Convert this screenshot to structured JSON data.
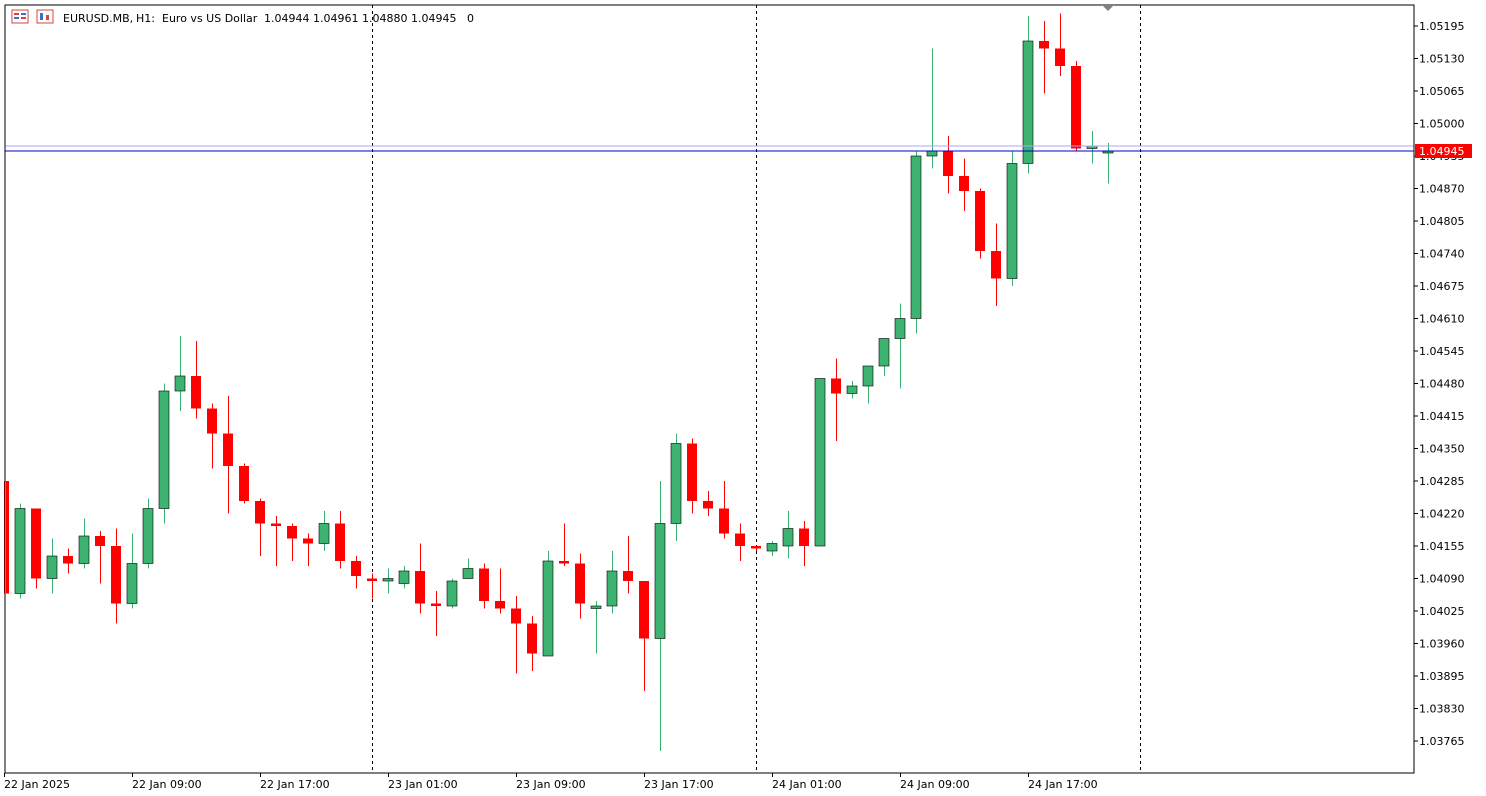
{
  "header": {
    "symbol": "EURUSD.MB,",
    "timeframe": "H1:",
    "description": "Euro vs US Dollar",
    "ohlc": "1.04944 1.04961 1.04880 1.04945",
    "extra": "0"
  },
  "icons": [
    "chart-window-icon",
    "symbol-window-icon",
    "scroll-marker-icon"
  ],
  "colors": {
    "bull": "#3cb371",
    "bear": "#ff0000",
    "bid_line": "#0000cd",
    "ask_line": "#a9a9f5",
    "price_tag_bg": "#ff0000"
  },
  "current_price_label": "1.04945",
  "chart_data": {
    "type": "candlestick",
    "symbol": "EURUSD.MB",
    "timeframe": "H1",
    "ylim": [
      1.037,
      1.0525
    ],
    "y_ticks": [
      "1.05195",
      "1.05130",
      "1.05065",
      "1.05000",
      "1.04935",
      "1.04870",
      "1.04805",
      "1.04740",
      "1.04675",
      "1.04610",
      "1.04545",
      "1.04480",
      "1.04415",
      "1.04350",
      "1.04285",
      "1.04220",
      "1.04155",
      "1.04090",
      "1.04025",
      "1.03960",
      "1.03895",
      "1.03830",
      "1.03765"
    ],
    "x_labels": [
      "22 Jan 2025",
      "22 Jan 09:00",
      "22 Jan 17:00",
      "23 Jan 01:00",
      "23 Jan 09:00",
      "23 Jan 17:00",
      "24 Jan 01:00",
      "24 Jan 09:00",
      "24 Jan 17:00"
    ],
    "bid": 1.04945,
    "ask": 1.04955,
    "candles": [
      [
        1.04285,
        1.04285,
        1.0406,
        1.0406
      ],
      [
        1.0406,
        1.0424,
        1.0405,
        1.0423
      ],
      [
        1.0423,
        1.0423,
        1.0407,
        1.0409
      ],
      [
        1.0409,
        1.0417,
        1.0406,
        1.04135
      ],
      [
        1.04135,
        1.0415,
        1.041,
        1.0412
      ],
      [
        1.0412,
        1.0421,
        1.0411,
        1.04175
      ],
      [
        1.04175,
        1.04185,
        1.0408,
        1.04155
      ],
      [
        1.04155,
        1.0419,
        1.04,
        1.0404
      ],
      [
        1.0404,
        1.0418,
        1.0403,
        1.0412
      ],
      [
        1.0412,
        1.0425,
        1.0411,
        1.0423
      ],
      [
        1.0423,
        1.0448,
        1.042,
        1.04465
      ],
      [
        1.04465,
        1.04575,
        1.04425,
        1.04495
      ],
      [
        1.04495,
        1.04565,
        1.0441,
        1.0443
      ],
      [
        1.0443,
        1.0444,
        1.0431,
        1.0438
      ],
      [
        1.0438,
        1.04455,
        1.0422,
        1.04315
      ],
      [
        1.04315,
        1.0432,
        1.0424,
        1.04245
      ],
      [
        1.04245,
        1.0425,
        1.04135,
        1.042
      ],
      [
        1.042,
        1.04215,
        1.04115,
        1.04195
      ],
      [
        1.04195,
        1.042,
        1.04125,
        1.0417
      ],
      [
        1.0417,
        1.0418,
        1.04115,
        1.0416
      ],
      [
        1.0416,
        1.04225,
        1.04145,
        1.042
      ],
      [
        1.042,
        1.04225,
        1.0411,
        1.04125
      ],
      [
        1.04125,
        1.04135,
        1.0407,
        1.04095
      ],
      [
        1.0409,
        1.041,
        1.0405,
        1.04085
      ],
      [
        1.04085,
        1.0411,
        1.0406,
        1.0409
      ],
      [
        1.0408,
        1.04115,
        1.0407,
        1.04105
      ],
      [
        1.04105,
        1.0416,
        1.0402,
        1.0404
      ],
      [
        1.0404,
        1.04065,
        1.03975,
        1.04035
      ],
      [
        1.04035,
        1.0409,
        1.0403,
        1.04085
      ],
      [
        1.0409,
        1.0413,
        1.0409,
        1.0411
      ],
      [
        1.0411,
        1.0412,
        1.0403,
        1.04045
      ],
      [
        1.04045,
        1.0411,
        1.0402,
        1.0403
      ],
      [
        1.0403,
        1.04055,
        1.039,
        1.04
      ],
      [
        1.04,
        1.04015,
        1.03905,
        1.0394
      ],
      [
        1.03935,
        1.04145,
        1.03935,
        1.04125
      ],
      [
        1.04125,
        1.042,
        1.04115,
        1.0412
      ],
      [
        1.0412,
        1.0414,
        1.0401,
        1.0404
      ],
      [
        1.0403,
        1.04045,
        1.0394,
        1.04035
      ],
      [
        1.04035,
        1.04145,
        1.0402,
        1.04105
      ],
      [
        1.04105,
        1.04175,
        1.0406,
        1.04085
      ],
      [
        1.04085,
        1.04085,
        1.03865,
        1.0397
      ],
      [
        1.0397,
        1.04285,
        1.03745,
        1.042
      ],
      [
        1.042,
        1.0438,
        1.04165,
        1.0436
      ],
      [
        1.0436,
        1.0437,
        1.0422,
        1.04245
      ],
      [
        1.04245,
        1.04265,
        1.04215,
        1.0423
      ],
      [
        1.0423,
        1.04285,
        1.0417,
        1.0418
      ],
      [
        1.0418,
        1.042,
        1.04125,
        1.04155
      ],
      [
        1.04155,
        1.04155,
        1.04145,
        1.0415
      ],
      [
        1.04145,
        1.04165,
        1.04135,
        1.0416
      ],
      [
        1.04155,
        1.04225,
        1.0413,
        1.0419
      ],
      [
        1.0419,
        1.04205,
        1.04115,
        1.04155
      ],
      [
        1.04155,
        1.0449,
        1.04155,
        1.0449
      ],
      [
        1.0449,
        1.0453,
        1.04365,
        1.0446
      ],
      [
        1.0446,
        1.04485,
        1.0445,
        1.04475
      ],
      [
        1.04475,
        1.04515,
        1.0444,
        1.04515
      ],
      [
        1.04515,
        1.0457,
        1.04495,
        1.0457
      ],
      [
        1.0457,
        1.0464,
        1.0447,
        1.0461
      ],
      [
        1.0461,
        1.04945,
        1.0458,
        1.04935
      ],
      [
        1.04935,
        1.0515,
        1.0491,
        1.04945
      ],
      [
        1.04945,
        1.04975,
        1.0486,
        1.04895
      ],
      [
        1.04895,
        1.0493,
        1.04825,
        1.04865
      ],
      [
        1.04865,
        1.0487,
        1.0473,
        1.04745
      ],
      [
        1.04745,
        1.048,
        1.04635,
        1.0469
      ],
      [
        1.0469,
        1.04945,
        1.04675,
        1.0492
      ],
      [
        1.0492,
        1.05215,
        1.049,
        1.05165
      ],
      [
        1.05165,
        1.05205,
        1.0506,
        1.0515
      ],
      [
        1.0515,
        1.0522,
        1.05095,
        1.05115
      ],
      [
        1.05115,
        1.05125,
        1.04945,
        1.0495
      ],
      [
        1.0495,
        1.04985,
        1.0492,
        1.04955
      ],
      [
        1.04944,
        1.04961,
        1.0488,
        1.04945
      ]
    ]
  }
}
